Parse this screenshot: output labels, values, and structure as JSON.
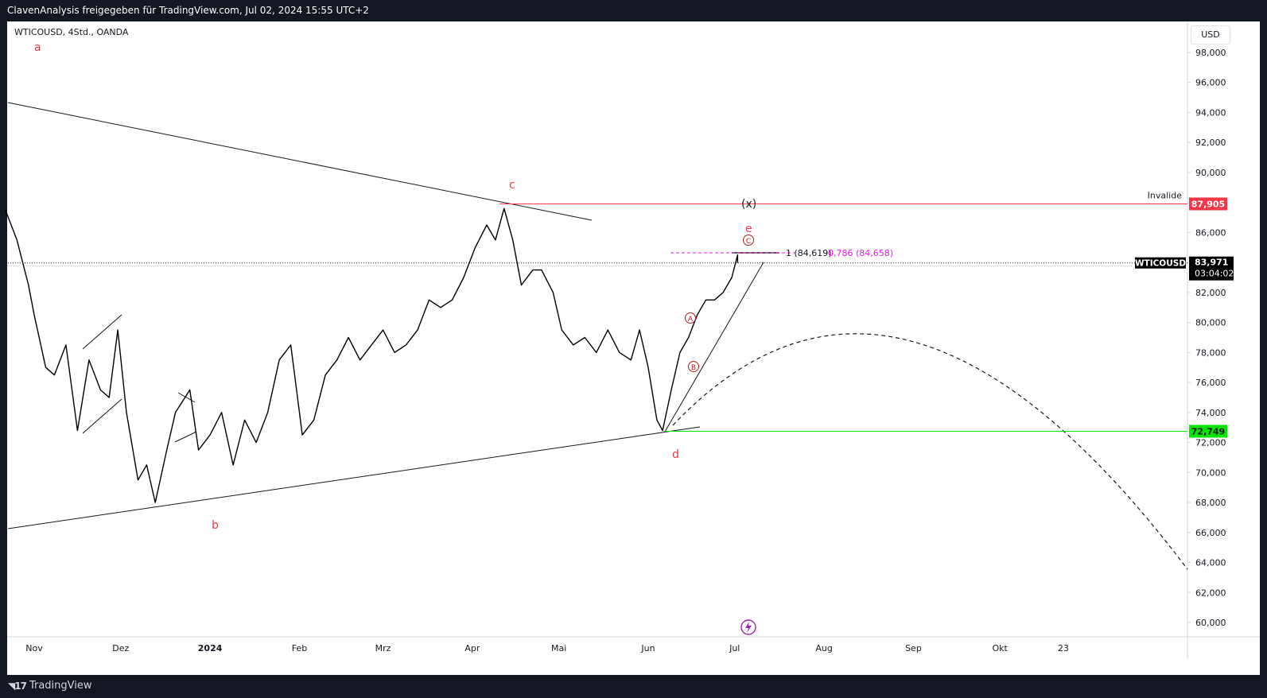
{
  "header": {
    "publish_line": "ClavenAnalysis freigegeben für TradingView.com, Jul 02, 2024 15:55 UTC+2"
  },
  "footer": {
    "brand": "TradingView"
  },
  "chart_data": {
    "type": "candlestick",
    "symbol_line": "WTICOUSD, 4Std., OANDA",
    "currency": "USD",
    "ylim": [
      59,
      99
    ],
    "y_ticks": [
      "98,000",
      "96,000",
      "94,000",
      "92,000",
      "90,000",
      "88,000",
      "86,000",
      "84,000",
      "82,000",
      "80,000",
      "78,000",
      "76,000",
      "74,000",
      "72,000",
      "70,000",
      "68,000",
      "66,000",
      "64,000",
      "62,000",
      "60,000"
    ],
    "x_ticks": [
      {
        "label": "Nov",
        "date": "2023-11-01"
      },
      {
        "label": "Dez",
        "date": "2023-12-01"
      },
      {
        "label": "2024",
        "date": "2024-01-01"
      },
      {
        "label": "Feb",
        "date": "2024-02-01"
      },
      {
        "label": "Mrz",
        "date": "2024-03-01"
      },
      {
        "label": "Apr",
        "date": "2024-04-01"
      },
      {
        "label": "Mai",
        "date": "2024-05-01"
      },
      {
        "label": "Jun",
        "date": "2024-06-01"
      },
      {
        "label": "Jul",
        "date": "2024-07-01"
      },
      {
        "label": "Aug",
        "date": "2024-08-01"
      },
      {
        "label": "Sep",
        "date": "2024-09-01"
      },
      {
        "label": "Okt",
        "date": "2024-10-01"
      },
      {
        "label": "23",
        "date": "2024-10-23"
      }
    ],
    "price_path": [
      [
        "2023-10-22",
        87.5
      ],
      [
        "2023-10-26",
        85.5
      ],
      [
        "2023-10-30",
        82.5
      ],
      [
        "2023-11-01",
        80.5
      ],
      [
        "2023-11-05",
        77.0
      ],
      [
        "2023-11-08",
        76.5
      ],
      [
        "2023-11-12",
        78.5
      ],
      [
        "2023-11-16",
        72.8
      ],
      [
        "2023-11-20",
        77.5
      ],
      [
        "2023-11-24",
        75.5
      ],
      [
        "2023-11-27",
        75.0
      ],
      [
        "2023-11-30",
        79.5
      ],
      [
        "2023-12-03",
        74.0
      ],
      [
        "2023-12-07",
        69.5
      ],
      [
        "2023-12-10",
        70.5
      ],
      [
        "2023-12-13",
        68.0
      ],
      [
        "2023-12-17",
        71.5
      ],
      [
        "2023-12-20",
        74.0
      ],
      [
        "2023-12-25",
        75.5
      ],
      [
        "2023-12-28",
        71.5
      ],
      [
        "2024-01-01",
        72.5
      ],
      [
        "2024-01-05",
        74.0
      ],
      [
        "2024-01-09",
        70.5
      ],
      [
        "2024-01-13",
        73.5
      ],
      [
        "2024-01-17",
        72.0
      ],
      [
        "2024-01-21",
        74.0
      ],
      [
        "2024-01-25",
        77.5
      ],
      [
        "2024-01-29",
        78.5
      ],
      [
        "2024-02-02",
        72.5
      ],
      [
        "2024-02-06",
        73.5
      ],
      [
        "2024-02-10",
        76.5
      ],
      [
        "2024-02-14",
        77.5
      ],
      [
        "2024-02-18",
        79.0
      ],
      [
        "2024-02-22",
        77.5
      ],
      [
        "2024-02-26",
        78.5
      ],
      [
        "2024-03-01",
        79.5
      ],
      [
        "2024-03-05",
        78.0
      ],
      [
        "2024-03-09",
        78.5
      ],
      [
        "2024-03-13",
        79.5
      ],
      [
        "2024-03-17",
        81.5
      ],
      [
        "2024-03-21",
        81.0
      ],
      [
        "2024-03-25",
        81.5
      ],
      [
        "2024-03-29",
        83.0
      ],
      [
        "2024-04-02",
        85.0
      ],
      [
        "2024-04-06",
        86.5
      ],
      [
        "2024-04-09",
        85.5
      ],
      [
        "2024-04-12",
        87.6
      ],
      [
        "2024-04-15",
        85.5
      ],
      [
        "2024-04-18",
        82.5
      ],
      [
        "2024-04-22",
        83.5
      ],
      [
        "2024-04-25",
        83.5
      ],
      [
        "2024-04-29",
        82.0
      ],
      [
        "2024-05-02",
        79.5
      ],
      [
        "2024-05-06",
        78.5
      ],
      [
        "2024-05-10",
        79.0
      ],
      [
        "2024-05-14",
        78.0
      ],
      [
        "2024-05-18",
        79.5
      ],
      [
        "2024-05-22",
        78.0
      ],
      [
        "2024-05-26",
        77.5
      ],
      [
        "2024-05-29",
        79.5
      ],
      [
        "2024-06-01",
        77.0
      ],
      [
        "2024-06-04",
        73.5
      ],
      [
        "2024-06-06",
        72.8
      ],
      [
        "2024-06-09",
        75.5
      ],
      [
        "2024-06-12",
        78.0
      ],
      [
        "2024-06-15",
        79.0
      ],
      [
        "2024-06-18",
        80.5
      ],
      [
        "2024-06-21",
        81.5
      ],
      [
        "2024-06-24",
        81.5
      ],
      [
        "2024-06-27",
        82.0
      ],
      [
        "2024-06-30",
        83.0
      ],
      [
        "2024-07-02",
        84.5
      ],
      [
        "2024-07-02",
        83.97
      ]
    ],
    "horizontal_levels": [
      {
        "label": "Invalide",
        "value": "87,905",
        "price": 87.905,
        "color": "#f23645"
      },
      {
        "label": "",
        "value": "72,749",
        "price": 72.749,
        "color": "#00e600"
      }
    ],
    "current_price": {
      "symbol": "WTICOUSD",
      "value": "83,971",
      "countdown": "03:04:02",
      "price": 83.971
    },
    "fib_labels": {
      "fib1": "1 (84,619)",
      "fib2": "0,786 (84,658)"
    },
    "wave_labels": [
      {
        "text": "a",
        "color": "#f23645"
      },
      {
        "text": "b",
        "color": "#f23645"
      },
      {
        "text": "c",
        "color": "#f23645"
      },
      {
        "text": "d",
        "color": "#f23645"
      },
      {
        "text": "e",
        "color": "#f23645"
      },
      {
        "text": "(x)",
        "color": "#131722"
      },
      {
        "text": "A",
        "color": "#b71c1c",
        "circled": true
      },
      {
        "text": "B",
        "color": "#b71c1c",
        "circled": true
      },
      {
        "text": "C",
        "color": "#b71c1c",
        "circled": true
      }
    ],
    "colors": {
      "level_red": "#f23645",
      "level_green": "#00e600",
      "fib_magenta": "#e91ee9",
      "wave_red": "#f23645",
      "wave_dark_red": "#b71c1c"
    }
  }
}
